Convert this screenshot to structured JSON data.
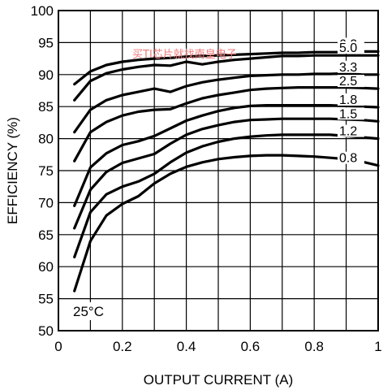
{
  "chart_data": {
    "type": "line",
    "xlabel": "OUTPUT CURRENT (A)",
    "ylabel": "EFFICIENCY (%)",
    "xlim": [
      0,
      1
    ],
    "ylim": [
      50,
      100
    ],
    "x_ticks": [
      "0",
      "0.2",
      "0.4",
      "0.6",
      "0.8",
      "1"
    ],
    "y_ticks": [
      "50",
      "55",
      "60",
      "65",
      "70",
      "75",
      "80",
      "85",
      "90",
      "95",
      "100"
    ],
    "grid": true,
    "annotation": "25°C",
    "watermark": "买TI芯片就找南皇电子",
    "series": [
      {
        "name": "6.0",
        "x": [
          0.05,
          0.1,
          0.15,
          0.2,
          0.25,
          0.3,
          0.35,
          0.4,
          0.45,
          0.5,
          0.55,
          0.6,
          0.65,
          0.7,
          0.75,
          0.8,
          0.85,
          0.9,
          0.95,
          1.0
        ],
        "y": [
          88.5,
          90.5,
          91.5,
          92,
          92.3,
          92.5,
          92.6,
          92.8,
          92.9,
          93,
          93.1,
          93.2,
          93.3,
          93.4,
          93.4,
          93.5,
          93.5,
          93.5,
          93.6,
          93.6
        ]
      },
      {
        "name": "5.0",
        "x": [
          0.05,
          0.1,
          0.15,
          0.2,
          0.25,
          0.3,
          0.35,
          0.4,
          0.45,
          0.5,
          0.55,
          0.6,
          0.65,
          0.7,
          0.75,
          0.8,
          0.85,
          0.9,
          0.95,
          1.0
        ],
        "y": [
          86,
          89,
          90.2,
          90.8,
          91.2,
          91.5,
          91.4,
          92,
          91.6,
          92,
          92.3,
          92.5,
          92.7,
          92.9,
          92.9,
          93,
          93,
          93,
          93,
          93
        ]
      },
      {
        "name": "3.3",
        "x": [
          0.05,
          0.1,
          0.15,
          0.2,
          0.25,
          0.3,
          0.35,
          0.4,
          0.45,
          0.5,
          0.55,
          0.6,
          0.65,
          0.7,
          0.75,
          0.8,
          0.85,
          0.9,
          0.95,
          1.0
        ],
        "y": [
          81,
          84.5,
          86,
          86.8,
          87.3,
          87.8,
          87.3,
          88.2,
          88.8,
          89.2,
          89.5,
          89.8,
          89.9,
          90,
          90,
          90.1,
          90.1,
          90.2,
          90,
          90
        ]
      },
      {
        "name": "2.5",
        "x": [
          0.05,
          0.1,
          0.15,
          0.2,
          0.25,
          0.3,
          0.35,
          0.4,
          0.45,
          0.5,
          0.55,
          0.6,
          0.65,
          0.7,
          0.75,
          0.8,
          0.85,
          0.9,
          0.95,
          1.0
        ],
        "y": [
          76.5,
          81,
          82.6,
          83.6,
          84.2,
          84.5,
          84.6,
          85.5,
          86.3,
          86.8,
          87.2,
          87.6,
          87.8,
          87.9,
          88,
          88,
          88,
          88,
          87.9,
          87.8
        ]
      },
      {
        "name": "1.8",
        "x": [
          0.05,
          0.1,
          0.15,
          0.2,
          0.25,
          0.3,
          0.35,
          0.4,
          0.45,
          0.5,
          0.55,
          0.6,
          0.65,
          0.7,
          0.75,
          0.8,
          0.85,
          0.9,
          0.95,
          1.0
        ],
        "y": [
          69.5,
          75.5,
          77.7,
          79,
          79.6,
          80.4,
          81.6,
          82.8,
          83.6,
          84.3,
          84.8,
          85.1,
          85.2,
          85.2,
          85.2,
          85.2,
          85.2,
          85.1,
          85,
          84.9
        ]
      },
      {
        "name": "1.5",
        "x": [
          0.05,
          0.1,
          0.15,
          0.2,
          0.25,
          0.3,
          0.35,
          0.4,
          0.45,
          0.5,
          0.55,
          0.6,
          0.65,
          0.7,
          0.75,
          0.8,
          0.85,
          0.9,
          0.95,
          1.0
        ],
        "y": [
          66,
          72,
          74.8,
          76.2,
          76.9,
          77.6,
          79.2,
          80.6,
          81.5,
          82.1,
          82.6,
          82.9,
          83,
          83.1,
          83.1,
          83.1,
          83.1,
          83,
          82.9,
          82.7
        ]
      },
      {
        "name": "1.2",
        "x": [
          0.05,
          0.1,
          0.15,
          0.2,
          0.25,
          0.3,
          0.35,
          0.4,
          0.45,
          0.5,
          0.55,
          0.6,
          0.65,
          0.7,
          0.75,
          0.8,
          0.85,
          0.9,
          0.95,
          1.0
        ],
        "y": [
          61.5,
          68.5,
          71.3,
          72.5,
          73.3,
          74.5,
          76.3,
          77.8,
          78.8,
          79.5,
          80,
          80.3,
          80.5,
          80.6,
          80.6,
          80.6,
          80.6,
          80.4,
          80.2,
          80
        ]
      },
      {
        "name": "0.8",
        "x": [
          0.05,
          0.1,
          0.15,
          0.2,
          0.25,
          0.3,
          0.35,
          0.4,
          0.45,
          0.5,
          0.55,
          0.6,
          0.65,
          0.7,
          0.75,
          0.8,
          0.85,
          0.9,
          0.95,
          1.0
        ],
        "y": [
          56.2,
          64,
          68,
          69.8,
          71,
          73,
          74.5,
          75.6,
          76.3,
          76.8,
          77.1,
          77.3,
          77.4,
          77.4,
          77.3,
          77.2,
          77,
          76.8,
          76.4,
          75.8
        ]
      }
    ]
  }
}
